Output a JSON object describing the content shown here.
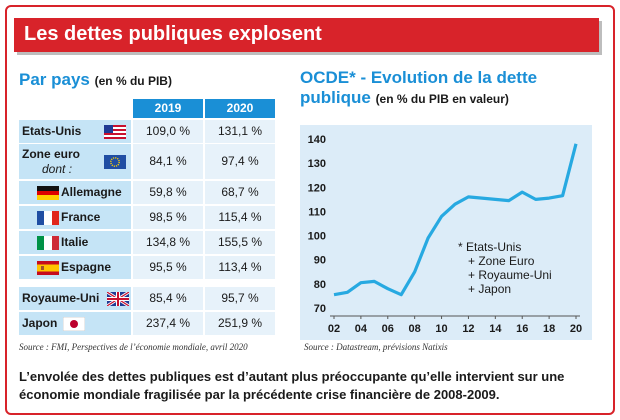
{
  "title": "Les dettes publiques explosent",
  "left": {
    "heading": "Par pays",
    "heading_sub": "(en % du PIB)",
    "col_headers": [
      "2019",
      "2020"
    ],
    "rows": [
      {
        "label": "Etats-Unis",
        "flag": "us-flag",
        "v2019": "109,0 %",
        "v2020": "131,1 %"
      },
      {
        "label": "Zone euro",
        "sublabel": "dont :",
        "flag": "eu-flag",
        "v2019": "84,1 %",
        "v2020": "97,4 %"
      },
      {
        "label": "Allemagne",
        "flag": "de-flag",
        "v2019": "59,8 %",
        "v2020": "68,7 %"
      },
      {
        "label": "France",
        "flag": "fr-flag",
        "v2019": "98,5 %",
        "v2020": "115,4 %"
      },
      {
        "label": "Italie",
        "flag": "it-flag",
        "v2019": "134,8 %",
        "v2020": "155,5 %"
      },
      {
        "label": "Espagne",
        "flag": "es-flag",
        "v2019": "95,5 %",
        "v2020": "113,4 %"
      },
      {
        "label": "Royaume-Uni",
        "flag": "uk-flag",
        "v2019": "85,4 %",
        "v2020": "95,7 %"
      },
      {
        "label": "Japon",
        "flag": "jp-flag",
        "v2019": "237,4 %",
        "v2020": "251,9 %"
      }
    ],
    "source": "Source : FMI, Perspectives de l’économie mondiale, avril 2020"
  },
  "right": {
    "heading_line1": "OCDE* - Evolution de la dette",
    "heading_line2": "publique",
    "heading_sub": "(en % du PIB en valeur)",
    "annotation": [
      "* Etats-Unis",
      "+ Zone Euro",
      "+ Royaume-Uni",
      "+ Japon"
    ],
    "source": "Source : Datastream, prévisions Natixis"
  },
  "chart_data": {
    "type": "line",
    "x": [
      2002,
      2003,
      2004,
      2005,
      2006,
      2007,
      2008,
      2009,
      2010,
      2011,
      2012,
      2013,
      2014,
      2015,
      2016,
      2017,
      2018,
      2019,
      2020
    ],
    "x_tick_labels": [
      "02",
      "04",
      "06",
      "08",
      "10",
      "12",
      "14",
      "16",
      "18",
      "20"
    ],
    "x_ticks": [
      2002,
      2004,
      2006,
      2008,
      2010,
      2012,
      2014,
      2016,
      2018,
      2020
    ],
    "series": [
      {
        "values": [
          75.5,
          76.5,
          80.5,
          81,
          78,
          75.5,
          85,
          99,
          108,
          113,
          116,
          115.5,
          115,
          114.5,
          118,
          115,
          115.5,
          116.5,
          138
        ]
      }
    ],
    "ylim": [
      70,
      140
    ],
    "y_ticks": [
      70,
      80,
      90,
      100,
      110,
      120,
      130,
      140
    ],
    "grid": false,
    "colors": {
      "line": "#27a9e1",
      "panel": "#dcecf8"
    }
  },
  "footer": "L’envolée des dettes publiques est d’autant plus préoccupante qu’elle intervient sur une économie mondiale fragilisée par la précédente crise financière de 2008-2009."
}
